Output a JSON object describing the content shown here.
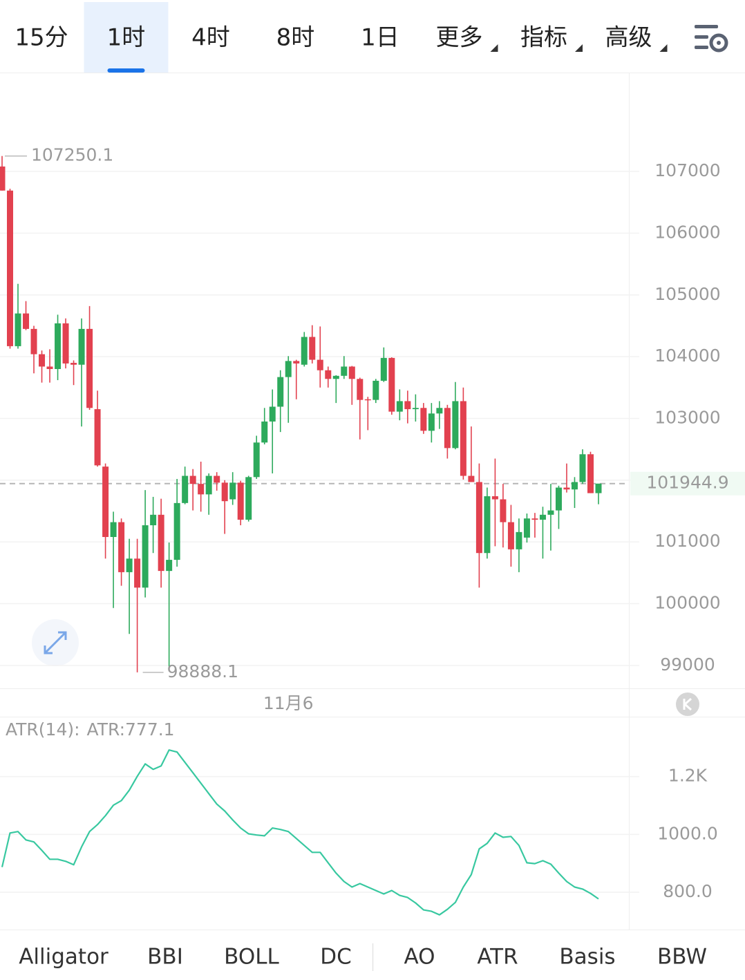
{
  "tabs": {
    "items": [
      "15分",
      "1时",
      "4时",
      "8时",
      "1日",
      "更多",
      "指标",
      "高级"
    ],
    "active": 1
  },
  "chart_data": [
    {
      "type": "candlestick",
      "categories": [
        null,
        null,
        null,
        null,
        null,
        null,
        null,
        null,
        null,
        null,
        null,
        null,
        null,
        null,
        null,
        null,
        null,
        null,
        null,
        null,
        null,
        null,
        null,
        null,
        null,
        null,
        null,
        null,
        null,
        null,
        null,
        null,
        null,
        null,
        null,
        null,
        "11月6",
        null,
        null,
        null,
        null,
        null,
        null,
        null,
        null,
        null,
        null,
        null,
        null,
        null,
        null,
        null,
        null,
        null,
        null,
        null,
        null,
        null,
        null,
        null,
        null,
        null,
        null,
        null,
        null,
        null,
        null,
        null,
        null,
        null,
        null,
        null,
        null,
        null,
        null,
        null
      ],
      "open": [
        107080,
        106690,
        104170,
        104700,
        104450,
        104040,
        103840,
        103800,
        104540,
        103900,
        103870,
        104450,
        103150,
        102220,
        101080,
        101320,
        100510,
        100730,
        100260,
        101270,
        101440,
        100530,
        100710,
        101630,
        102070,
        101940,
        101770,
        102070,
        101960,
        101690,
        101960,
        101360,
        102050,
        102610,
        102950,
        103190,
        103670,
        103930,
        103870,
        104320,
        103950,
        103780,
        103640,
        103690,
        103840,
        103640,
        103310,
        103300,
        103610,
        103980,
        103110,
        103280,
        103150,
        103170,
        102800,
        103080,
        103170,
        102520,
        103280,
        102070,
        101970,
        100820,
        101740,
        101690,
        101320,
        100880,
        101070,
        101380,
        101360,
        101440,
        101510,
        101880,
        101850,
        101970,
        102420,
        101790
      ],
      "high": [
        107250.1,
        106720,
        105180,
        104900,
        104500,
        104100,
        104120,
        104680,
        104620,
        103940,
        104620,
        104820,
        103450,
        102270,
        101490,
        101380,
        101050,
        101050,
        101840,
        101730,
        101700,
        100990,
        102020,
        102220,
        102180,
        102300,
        102110,
        102130,
        102000,
        102130,
        101990,
        102070,
        102720,
        103170,
        103470,
        103780,
        104010,
        103950,
        104400,
        104510,
        104490,
        103840,
        103700,
        104010,
        103850,
        103660,
        103350,
        103640,
        104150,
        103990,
        103470,
        103450,
        103390,
        103250,
        103250,
        103280,
        103220,
        103590,
        103500,
        102870,
        102270,
        101880,
        102350,
        101940,
        101600,
        101380,
        101460,
        101470,
        101570,
        101940,
        101910,
        102270,
        102050,
        102500,
        102460,
        101940
      ],
      "low": [
        106690,
        104130,
        104130,
        104430,
        103730,
        103580,
        103580,
        103620,
        103810,
        103540,
        102870,
        103140,
        102220,
        100730,
        99930,
        100290,
        99510,
        98888.1,
        100100,
        100820,
        100260,
        98980,
        100600,
        101610,
        101510,
        101490,
        101440,
        101830,
        101130,
        101600,
        101270,
        101330,
        102020,
        102580,
        102110,
        102780,
        102930,
        103310,
        103840,
        103890,
        103500,
        103500,
        103250,
        103640,
        103220,
        102660,
        102810,
        103250,
        103590,
        103060,
        102970,
        102920,
        102950,
        102750,
        102610,
        102830,
        102350,
        102500,
        102010,
        101970,
        100260,
        100730,
        100930,
        100910,
        100600,
        100510,
        100990,
        101070,
        100730,
        100860,
        101210,
        101800,
        101550,
        101940,
        101790,
        101610
      ],
      "close": [
        106690,
        104170,
        104700,
        104450,
        104040,
        103840,
        103800,
        104540,
        103890,
        103870,
        104450,
        103170,
        102240,
        101080,
        101320,
        100510,
        100730,
        100260,
        101270,
        101440,
        100530,
        100710,
        101630,
        102070,
        101940,
        101770,
        102070,
        101960,
        101660,
        101960,
        101360,
        102050,
        102610,
        102950,
        103190,
        103670,
        103930,
        103890,
        104320,
        103950,
        103780,
        103640,
        103690,
        103840,
        103640,
        103300,
        103300,
        103610,
        103980,
        103110,
        103280,
        103150,
        103170,
        102800,
        103080,
        103170,
        102520,
        103280,
        102070,
        101970,
        100820,
        101740,
        101690,
        101320,
        100880,
        101160,
        101380,
        101360,
        101440,
        101510,
        101880,
        101850,
        101970,
        102420,
        101790,
        101944.9
      ],
      "up_color": "#2daa5c",
      "down_color": "#e2414f",
      "ylim": [
        98640,
        108590
      ],
      "yticks": [
        99000,
        100000,
        101000,
        102000,
        103000,
        104000,
        105000,
        106000,
        107000
      ],
      "grid": true,
      "high_marker": 107250.1,
      "low_marker": 98888.1,
      "last_price": 101944.9,
      "last_price_color": "#2daa5c"
    },
    {
      "type": "line",
      "indicator": "ATR(14):",
      "current_label": "ATR:777.1",
      "series": [
        {
          "name": "ATR",
          "color": "#38c8a0",
          "values": [
            887,
            1005,
            1010,
            981,
            974,
            945,
            914,
            914,
            907,
            895,
            957,
            1010,
            1034,
            1065,
            1101,
            1117,
            1153,
            1201,
            1244,
            1225,
            1237,
            1292,
            1285,
            1249,
            1213,
            1177,
            1141,
            1105,
            1081,
            1050,
            1022,
            1002,
            998,
            995,
            1022,
            1017,
            1010,
            986,
            962,
            938,
            938,
            902,
            866,
            837,
            818,
            830,
            818,
            806,
            794,
            806,
            789,
            782,
            763,
            739,
            734,
            722,
            741,
            765,
            818,
            861,
            950,
            969,
            1005,
            990,
            993,
            962,
            902,
            899,
            909,
            897,
            866,
            837,
            818,
            811,
            796,
            777.1
          ]
        }
      ],
      "ylim": [
        671,
        1400
      ],
      "yticks": [
        {
          "value": 800,
          "label": "800.0"
        },
        {
          "value": 1000,
          "label": "1000.0"
        },
        {
          "value": 1200,
          "label": "1.2K"
        }
      ],
      "grid": true
    }
  ],
  "indicators": {
    "items": [
      "Alligator",
      "BBI",
      "BOLL",
      "DC",
      "AO",
      "ATR",
      "Basis",
      "BBW"
    ],
    "active": 5
  }
}
